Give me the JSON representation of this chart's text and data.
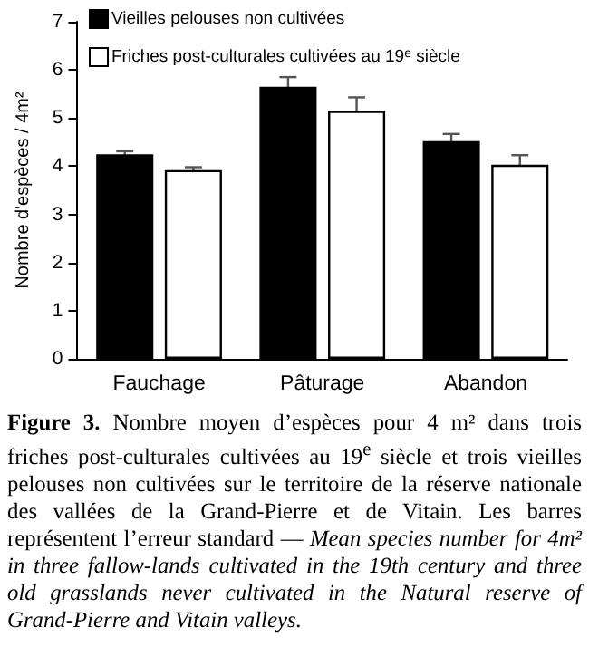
{
  "chart_data": {
    "type": "bar",
    "categories": [
      "Fauchage",
      "Pâturage",
      "Abandon"
    ],
    "series": [
      {
        "name": "Vieilles pelouses non cultivées",
        "color": "#000000",
        "values": [
          4.25,
          5.65,
          4.52
        ],
        "errors": [
          0.06,
          0.2,
          0.15
        ]
      },
      {
        "name": "Friches post-culturales cultivées au 19$^{e}$ siècle",
        "color": "#ffffff",
        "values": [
          3.92,
          5.15,
          4.03
        ],
        "errors": [
          0.06,
          0.28,
          0.2
        ]
      }
    ],
    "ylabel": "Nombre d'espèces / 4m²",
    "ylim": [
      0,
      7
    ],
    "yticks": [
      0,
      1,
      2,
      3,
      4,
      5,
      6,
      7
    ],
    "grid": false,
    "legend": "top left",
    "annotations": [
      "Figure 3.",
      "Nombre moyen d’espèces pour 4 m² dans trois friches post-culturales cultivées au 19$^{e}$ siècle et trois vieilles pelouses non cultivées sur le territoire de la réserve nationale des vallées de la Grand-Pierre et de Vitain. Les barres représentent l’erreur standard —",
      "Mean species number for 4m² in three fallow-lands cultivated in the 19th century and three old grasslands never cultivated in the Natural reserve of Grand-Pierre and Vitain valleys."
    ]
  }
}
